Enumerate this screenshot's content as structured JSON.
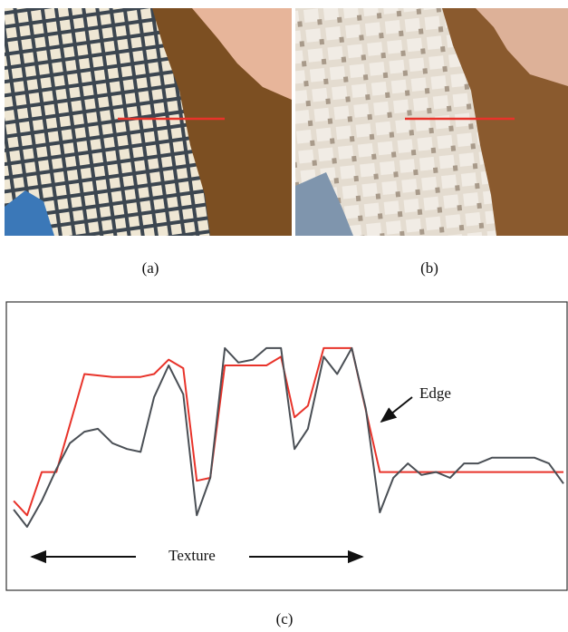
{
  "captions": [
    "(a)",
    "(b)",
    "(c)"
  ],
  "chart_data": {
    "type": "line",
    "annotations": [
      "Edge",
      "Texture"
    ],
    "xlim": [
      0,
      100
    ],
    "ylim": [
      0,
      100
    ],
    "series": [
      {
        "color": "#e8332a",
        "x": [
          1.3,
          3.7,
          6.3,
          8.9,
          13.9,
          18.9,
          23.9,
          26.3,
          28.9,
          31.5,
          33.9,
          36.3,
          38.9,
          41.3,
          46.3,
          48.9,
          51.3,
          53.7,
          56.5,
          61.5,
          66.5,
          99.2
        ],
        "values": [
          31,
          26,
          41,
          41,
          75,
          74,
          74,
          75,
          80,
          77,
          38,
          39,
          78,
          78,
          78,
          81,
          60,
          64,
          84,
          84,
          41,
          41
        ]
      },
      {
        "color": "#4a4f55",
        "x": [
          1.3,
          3.7,
          6.3,
          8.9,
          11.3,
          13.9,
          16.3,
          18.9,
          21.5,
          23.9,
          26.3,
          28.9,
          31.5,
          33.9,
          36.3,
          38.9,
          41.3,
          43.9,
          46.3,
          48.9,
          51.3,
          53.7,
          56.5,
          58.9,
          61.5,
          64,
          66.5,
          68.9,
          71.5,
          73.9,
          76.5,
          79,
          81.5,
          84,
          86.5,
          89,
          91.5,
          94,
          96.6,
          99.2
        ],
        "values": [
          28,
          22,
          31,
          42,
          51,
          55,
          56,
          51,
          49,
          48,
          67,
          78,
          68,
          26,
          39,
          84,
          79,
          80,
          84,
          84,
          49,
          56,
          81,
          75,
          84,
          63,
          27,
          39,
          44,
          40,
          41,
          39,
          44,
          44,
          46,
          46,
          46,
          46,
          44,
          37
        ]
      }
    ]
  }
}
